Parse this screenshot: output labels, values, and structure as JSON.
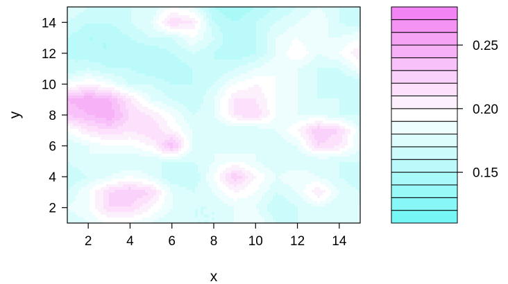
{
  "chart_data": {
    "type": "heatmap",
    "title": "",
    "xlabel": "x",
    "ylabel": "y",
    "xlim": [
      1,
      15
    ],
    "ylim": [
      1,
      15
    ],
    "x_ticks": [
      "2",
      "4",
      "6",
      "8",
      "10",
      "12",
      "14"
    ],
    "y_ticks": [
      "2",
      "4",
      "6",
      "8",
      "10",
      "12",
      "14"
    ],
    "x": [
      1,
      2,
      3,
      4,
      5,
      6,
      7,
      8,
      9,
      10,
      11,
      12,
      13,
      14,
      15
    ],
    "y": [
      1,
      2,
      3,
      4,
      5,
      6,
      7,
      8,
      9,
      10,
      11,
      12,
      13,
      14,
      15
    ],
    "z": [
      [
        0.17,
        0.18,
        0.19,
        0.19,
        0.18,
        0.17,
        0.17,
        0.17,
        0.18,
        0.19,
        0.17,
        0.17,
        0.18,
        0.17,
        0.18
      ],
      [
        0.18,
        0.19,
        0.22,
        0.22,
        0.2,
        0.18,
        0.17,
        0.17,
        0.18,
        0.18,
        0.16,
        0.17,
        0.18,
        0.17,
        0.18
      ],
      [
        0.17,
        0.19,
        0.22,
        0.23,
        0.22,
        0.18,
        0.17,
        0.18,
        0.2,
        0.19,
        0.17,
        0.18,
        0.21,
        0.18,
        0.17
      ],
      [
        0.16,
        0.17,
        0.18,
        0.19,
        0.18,
        0.16,
        0.16,
        0.19,
        0.23,
        0.2,
        0.18,
        0.19,
        0.18,
        0.17,
        0.16
      ],
      [
        0.17,
        0.18,
        0.17,
        0.17,
        0.17,
        0.17,
        0.17,
        0.18,
        0.19,
        0.18,
        0.17,
        0.17,
        0.17,
        0.17,
        0.17
      ],
      [
        0.17,
        0.18,
        0.19,
        0.19,
        0.2,
        0.24,
        0.18,
        0.18,
        0.17,
        0.18,
        0.17,
        0.18,
        0.22,
        0.21,
        0.18
      ],
      [
        0.19,
        0.21,
        0.22,
        0.21,
        0.22,
        0.2,
        0.18,
        0.17,
        0.17,
        0.17,
        0.18,
        0.2,
        0.23,
        0.22,
        0.18
      ],
      [
        0.23,
        0.24,
        0.25,
        0.22,
        0.21,
        0.19,
        0.17,
        0.18,
        0.21,
        0.22,
        0.19,
        0.18,
        0.18,
        0.17,
        0.17
      ],
      [
        0.24,
        0.25,
        0.24,
        0.21,
        0.18,
        0.17,
        0.16,
        0.18,
        0.21,
        0.21,
        0.19,
        0.18,
        0.17,
        0.17,
        0.16
      ],
      [
        0.19,
        0.2,
        0.19,
        0.17,
        0.17,
        0.16,
        0.16,
        0.17,
        0.19,
        0.2,
        0.19,
        0.18,
        0.17,
        0.16,
        0.16
      ],
      [
        0.16,
        0.17,
        0.16,
        0.16,
        0.15,
        0.15,
        0.16,
        0.16,
        0.17,
        0.18,
        0.19,
        0.18,
        0.17,
        0.17,
        0.19
      ],
      [
        0.16,
        0.15,
        0.15,
        0.15,
        0.15,
        0.16,
        0.17,
        0.16,
        0.15,
        0.16,
        0.18,
        0.2,
        0.18,
        0.19,
        0.21
      ],
      [
        0.16,
        0.15,
        0.15,
        0.16,
        0.17,
        0.17,
        0.19,
        0.17,
        0.15,
        0.16,
        0.18,
        0.19,
        0.18,
        0.18,
        0.19
      ],
      [
        0.17,
        0.16,
        0.16,
        0.17,
        0.18,
        0.22,
        0.21,
        0.16,
        0.15,
        0.16,
        0.17,
        0.18,
        0.19,
        0.17,
        0.16
      ],
      [
        0.18,
        0.17,
        0.17,
        0.17,
        0.17,
        0.19,
        0.18,
        0.15,
        0.14,
        0.15,
        0.16,
        0.17,
        0.18,
        0.17,
        0.17
      ]
    ],
    "colorbar": {
      "ticks": [
        0.15,
        0.2,
        0.25
      ],
      "tick_labels": [
        "0.15",
        "0.20",
        "0.25"
      ],
      "range": [
        0.11,
        0.28
      ],
      "levels": [
        0.11,
        0.12,
        0.13,
        0.14,
        0.15,
        0.16,
        0.17,
        0.18,
        0.19,
        0.2,
        0.21,
        0.22,
        0.23,
        0.24,
        0.25,
        0.26,
        0.27,
        0.28
      ],
      "low_color": "#6ef5f5",
      "mid_color": "#ffffff",
      "high_color": "#f27cf2",
      "mid_value": 0.195
    },
    "grid": false,
    "legend": "right"
  }
}
